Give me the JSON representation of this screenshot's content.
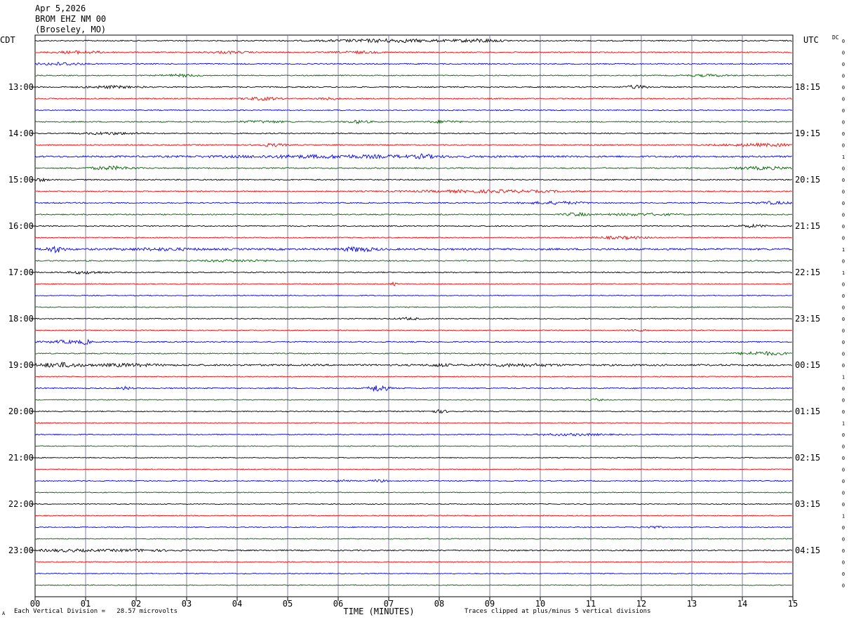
{
  "header": {
    "date": "Apr 5,2026",
    "station": "BROM EHZ NM 00",
    "location": "(Broseley, MO)"
  },
  "left_axis_title": "CDT",
  "right_axis_title": "UTC",
  "dc_title": "DC",
  "footer": {
    "scale_note": "Each Vertical Division =   28.57 microvolts",
    "clip_note": "Traces clipped at plus/minus 5 vertical divisions",
    "corner_mark": "A"
  },
  "colors": {
    "trace_cycle": [
      "#000000",
      "#ff0000",
      "#0000ff",
      "#006400"
    ],
    "grid": "#7f7f9f"
  },
  "chart_data": {
    "type": "line",
    "title": "",
    "xlabel": "TIME (MINUTES)",
    "ylabel": "",
    "xlim": [
      0,
      15
    ],
    "x_tick_labels": [
      "00",
      "01",
      "02",
      "03",
      "04",
      "05",
      "06",
      "07",
      "08",
      "09",
      "10",
      "11",
      "12",
      "13",
      "14",
      "15"
    ],
    "left_hour_labels": [
      "13:00",
      "14:00",
      "15:00",
      "16:00",
      "17:00",
      "18:00",
      "19:00",
      "20:00",
      "21:00",
      "22:00",
      "23:00"
    ],
    "right_hour_labels": [
      "18:15",
      "19:15",
      "20:15",
      "21:15",
      "22:15",
      "23:15",
      "00:15",
      "01:15",
      "02:15",
      "03:15",
      "04:15"
    ],
    "row_count": 48,
    "first_labeled_row": 4,
    "rows_per_hour": 4,
    "dc_values": [
      "0",
      "0",
      "0",
      "0",
      "0",
      "0",
      "0",
      "0",
      "0",
      "0",
      "1",
      "0",
      "0",
      "0",
      "0",
      "0",
      "0",
      "0",
      "1",
      "0",
      "1",
      "0",
      "0",
      "0",
      "0",
      "0",
      "0",
      "0",
      "0",
      "1",
      "0",
      "0",
      "0",
      "1",
      "0",
      "0",
      "0",
      "0",
      "0",
      "0",
      "0",
      "1",
      "0",
      "0",
      "0",
      "0",
      "0",
      "0"
    ],
    "series": [
      {
        "row": 0,
        "noise": 0.8,
        "events": [
          {
            "t": 7.0,
            "amp": 2.0,
            "w": 1.6
          },
          {
            "t": 8.8,
            "amp": 2.0,
            "w": 0.6
          }
        ]
      },
      {
        "row": 1,
        "noise": 0.8,
        "events": [
          {
            "t": 0.9,
            "amp": 1.6,
            "w": 0.7
          },
          {
            "t": 3.8,
            "amp": 1.3,
            "w": 0.6
          },
          {
            "t": 6.4,
            "amp": 1.3,
            "w": 0.6
          }
        ]
      },
      {
        "row": 2,
        "noise": 0.8,
        "events": [
          {
            "t": 0.5,
            "amp": 1.8,
            "w": 0.6
          }
        ]
      },
      {
        "row": 3,
        "noise": 0.7,
        "events": [
          {
            "t": 2.9,
            "amp": 1.5,
            "w": 0.5
          },
          {
            "t": 13.3,
            "amp": 1.3,
            "w": 0.6
          }
        ]
      },
      {
        "row": 4,
        "noise": 0.8,
        "events": [
          {
            "t": 1.5,
            "amp": 1.5,
            "w": 0.7
          },
          {
            "t": 11.9,
            "amp": 2.3,
            "w": 0.3
          }
        ]
      },
      {
        "row": 5,
        "noise": 0.8,
        "events": [
          {
            "t": 4.5,
            "amp": 1.8,
            "w": 0.5
          },
          {
            "t": 5.8,
            "amp": 1.3,
            "w": 0.3
          }
        ]
      },
      {
        "row": 6,
        "noise": 0.7,
        "events": []
      },
      {
        "row": 7,
        "noise": 0.8,
        "events": [
          {
            "t": 4.5,
            "amp": 1.3,
            "w": 0.6
          },
          {
            "t": 6.4,
            "amp": 1.8,
            "w": 0.3
          },
          {
            "t": 8.1,
            "amp": 1.5,
            "w": 0.4
          }
        ]
      },
      {
        "row": 8,
        "noise": 0.8,
        "events": [
          {
            "t": 1.5,
            "amp": 1.4,
            "w": 0.8
          }
        ]
      },
      {
        "row": 9,
        "noise": 0.8,
        "events": [
          {
            "t": 4.7,
            "amp": 1.6,
            "w": 0.4
          },
          {
            "t": 14.4,
            "amp": 1.6,
            "w": 1.2
          }
        ]
      },
      {
        "row": 10,
        "noise": 1.2,
        "events": [
          {
            "t": 6.0,
            "amp": 1.6,
            "w": 3.0
          },
          {
            "t": 7.7,
            "amp": 2.2,
            "w": 0.2
          }
        ]
      },
      {
        "row": 11,
        "noise": 0.8,
        "events": [
          {
            "t": 1.5,
            "amp": 2.2,
            "w": 0.6
          },
          {
            "t": 14.4,
            "amp": 1.8,
            "w": 0.8
          }
        ]
      },
      {
        "row": 12,
        "noise": 0.8,
        "events": [
          {
            "t": 0.1,
            "amp": 2.0,
            "w": 0.2
          }
        ]
      },
      {
        "row": 13,
        "noise": 0.8,
        "events": [
          {
            "t": 9.0,
            "amp": 1.5,
            "w": 2.2
          }
        ]
      },
      {
        "row": 14,
        "noise": 0.8,
        "events": [
          {
            "t": 10.3,
            "amp": 1.6,
            "w": 0.8
          },
          {
            "t": 14.6,
            "amp": 1.6,
            "w": 0.5
          }
        ]
      },
      {
        "row": 15,
        "noise": 0.8,
        "events": [
          {
            "t": 10.7,
            "amp": 2.2,
            "w": 0.3
          },
          {
            "t": 12.0,
            "amp": 1.3,
            "w": 1.0
          }
        ]
      },
      {
        "row": 16,
        "noise": 0.8,
        "events": [
          {
            "t": 14.2,
            "amp": 1.6,
            "w": 0.4
          }
        ]
      },
      {
        "row": 17,
        "noise": 0.7,
        "events": [
          {
            "t": 11.6,
            "amp": 1.5,
            "w": 0.8
          }
        ]
      },
      {
        "row": 18,
        "noise": 1.3,
        "events": [
          {
            "t": 0.4,
            "amp": 4.0,
            "w": 0.25
          },
          {
            "t": 2.5,
            "amp": 1.2,
            "w": 1.0
          },
          {
            "t": 6.4,
            "amp": 2.8,
            "w": 0.45
          }
        ]
      },
      {
        "row": 19,
        "noise": 0.8,
        "events": [
          {
            "t": 4.0,
            "amp": 1.2,
            "w": 1.0
          }
        ]
      },
      {
        "row": 20,
        "noise": 0.8,
        "events": [
          {
            "t": 1.0,
            "amp": 1.6,
            "w": 0.5
          }
        ]
      },
      {
        "row": 21,
        "noise": 0.6,
        "events": [
          {
            "t": 7.1,
            "amp": 2.0,
            "w": 0.1
          }
        ]
      },
      {
        "row": 22,
        "noise": 0.6,
        "events": []
      },
      {
        "row": 23,
        "noise": 0.6,
        "events": []
      },
      {
        "row": 24,
        "noise": 0.7,
        "events": [
          {
            "t": 7.4,
            "amp": 1.5,
            "w": 0.3
          }
        ]
      },
      {
        "row": 25,
        "noise": 0.6,
        "events": [
          {
            "t": 11.9,
            "amp": 1.3,
            "w": 0.3
          }
        ]
      },
      {
        "row": 26,
        "noise": 0.8,
        "events": [
          {
            "t": 0.6,
            "amp": 1.8,
            "w": 0.5
          },
          {
            "t": 1.0,
            "amp": 2.5,
            "w": 0.15
          }
        ]
      },
      {
        "row": 27,
        "noise": 0.7,
        "events": [
          {
            "t": 14.4,
            "amp": 2.3,
            "w": 0.7
          }
        ]
      },
      {
        "row": 28,
        "noise": 1.2,
        "events": [
          {
            "t": 0.5,
            "amp": 2.8,
            "w": 0.6
          },
          {
            "t": 1.8,
            "amp": 1.6,
            "w": 0.8
          },
          {
            "t": 8.0,
            "amp": 1.6,
            "w": 0.3
          },
          {
            "t": 9.6,
            "amp": 1.4,
            "w": 1.0
          }
        ]
      },
      {
        "row": 29,
        "noise": 0.6,
        "events": []
      },
      {
        "row": 30,
        "noise": 0.8,
        "events": [
          {
            "t": 1.8,
            "amp": 2.0,
            "w": 0.15
          },
          {
            "t": 6.8,
            "amp": 5.0,
            "w": 0.25
          }
        ]
      },
      {
        "row": 31,
        "noise": 0.6,
        "events": [
          {
            "t": 11.1,
            "amp": 1.3,
            "w": 0.2
          }
        ]
      },
      {
        "row": 32,
        "noise": 0.7,
        "events": [
          {
            "t": 8.0,
            "amp": 1.8,
            "w": 0.3
          }
        ]
      },
      {
        "row": 33,
        "noise": 0.6,
        "events": []
      },
      {
        "row": 34,
        "noise": 0.7,
        "events": [
          {
            "t": 10.6,
            "amp": 1.2,
            "w": 1.0
          }
        ]
      },
      {
        "row": 35,
        "noise": 0.6,
        "events": []
      },
      {
        "row": 36,
        "noise": 0.6,
        "events": []
      },
      {
        "row": 37,
        "noise": 0.6,
        "events": []
      },
      {
        "row": 38,
        "noise": 0.7,
        "events": [
          {
            "t": 6.1,
            "amp": 1.5,
            "w": 0.2
          },
          {
            "t": 6.8,
            "amp": 1.6,
            "w": 0.2
          }
        ]
      },
      {
        "row": 39,
        "noise": 0.6,
        "events": []
      },
      {
        "row": 40,
        "noise": 0.6,
        "events": []
      },
      {
        "row": 41,
        "noise": 0.6,
        "events": []
      },
      {
        "row": 42,
        "noise": 0.7,
        "events": [
          {
            "t": 12.2,
            "amp": 1.4,
            "w": 0.3
          }
        ]
      },
      {
        "row": 43,
        "noise": 0.6,
        "events": []
      },
      {
        "row": 44,
        "noise": 0.9,
        "events": [
          {
            "t": 0.6,
            "amp": 1.4,
            "w": 0.8
          },
          {
            "t": 2.0,
            "amp": 1.2,
            "w": 1.0
          }
        ]
      },
      {
        "row": 45,
        "noise": 0.6,
        "events": []
      },
      {
        "row": 46,
        "noise": 0.6,
        "events": []
      },
      {
        "row": 47,
        "noise": 0.6,
        "events": []
      }
    ]
  }
}
